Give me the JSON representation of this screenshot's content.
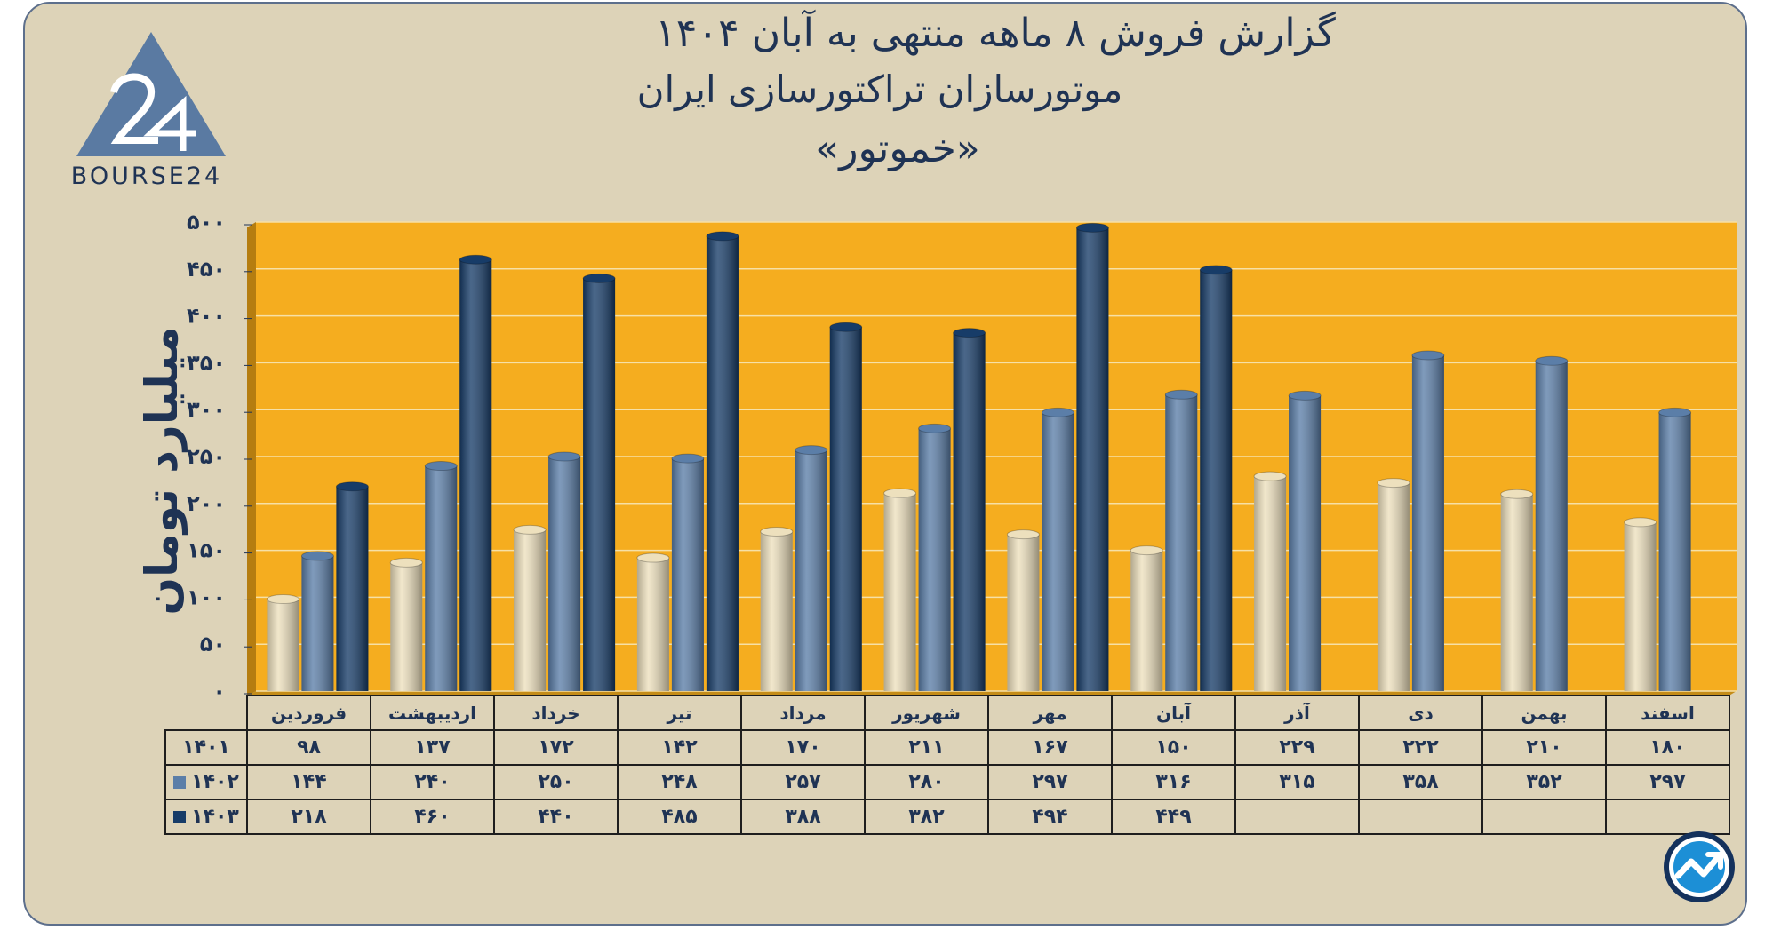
{
  "header": {
    "title_line1": "گزارش  فروش ۸ ماهه منتهی به آبان ۱۴۰۴",
    "title_line2": "موتورسازان تراکتورسازی ایران",
    "title_line3": "«خموتور»"
  },
  "logo": {
    "text": "BOURSE24",
    "icon": "bourse24-logo-icon"
  },
  "colors": {
    "background": "#ddd3b8",
    "plot_area": "#f5ad1f",
    "series_1401": "#ede0bd",
    "series_1402": "#5b7ea8",
    "series_1403": "#173c68",
    "text": "#1f3354"
  },
  "chart_data": {
    "type": "bar",
    "title": "گزارش  فروش ۸ ماهه منتهی به آبان ۱۴۰۴",
    "ylabel": "میلیارد تومان",
    "ylim": [
      0,
      500
    ],
    "yticks": [
      0,
      50,
      100,
      150,
      200,
      250,
      300,
      350,
      400,
      450,
      500
    ],
    "ytick_labels": [
      "۰",
      "۵۰",
      "۱۰۰",
      "۱۵۰",
      "۲۰۰",
      "۲۵۰",
      "۳۰۰",
      "۳۵۰",
      "۴۰۰",
      "۴۵۰",
      "۵۰۰"
    ],
    "categories": [
      "فروردین",
      "اردیبهشت",
      "خرداد",
      "تیر",
      "مرداد",
      "شهریور",
      "مهر",
      "آبان",
      "آذر",
      "دی",
      "بهمن",
      "اسفند"
    ],
    "series": [
      {
        "name": "۱۴۰۱",
        "values": [
          98,
          137,
          172,
          142,
          170,
          211,
          167,
          150,
          229,
          222,
          210,
          180
        ],
        "labels": [
          "۹۸",
          "۱۳۷",
          "۱۷۲",
          "۱۴۲",
          "۱۷۰",
          "۲۱۱",
          "۱۶۷",
          "۱۵۰",
          "۲۲۹",
          "۲۲۲",
          "۲۱۰",
          "۱۸۰"
        ]
      },
      {
        "name": "۱۴۰۲",
        "values": [
          144,
          240,
          250,
          248,
          257,
          280,
          297,
          316,
          315,
          358,
          352,
          297
        ],
        "labels": [
          "۱۴۴",
          "۲۴۰",
          "۲۵۰",
          "۲۴۸",
          "۲۵۷",
          "۲۸۰",
          "۲۹۷",
          "۳۱۶",
          "۳۱۵",
          "۳۵۸",
          "۳۵۲",
          "۲۹۷"
        ]
      },
      {
        "name": "۱۴۰۳",
        "values": [
          218,
          460,
          440,
          485,
          388,
          382,
          494,
          449,
          null,
          null,
          null,
          null
        ],
        "labels": [
          "۲۱۸",
          "۴۶۰",
          "۴۴۰",
          "۴۸۵",
          "۳۸۸",
          "۳۸۲",
          "۴۹۴",
          "۴۴۹",
          "",
          "",
          "",
          ""
        ]
      }
    ]
  }
}
